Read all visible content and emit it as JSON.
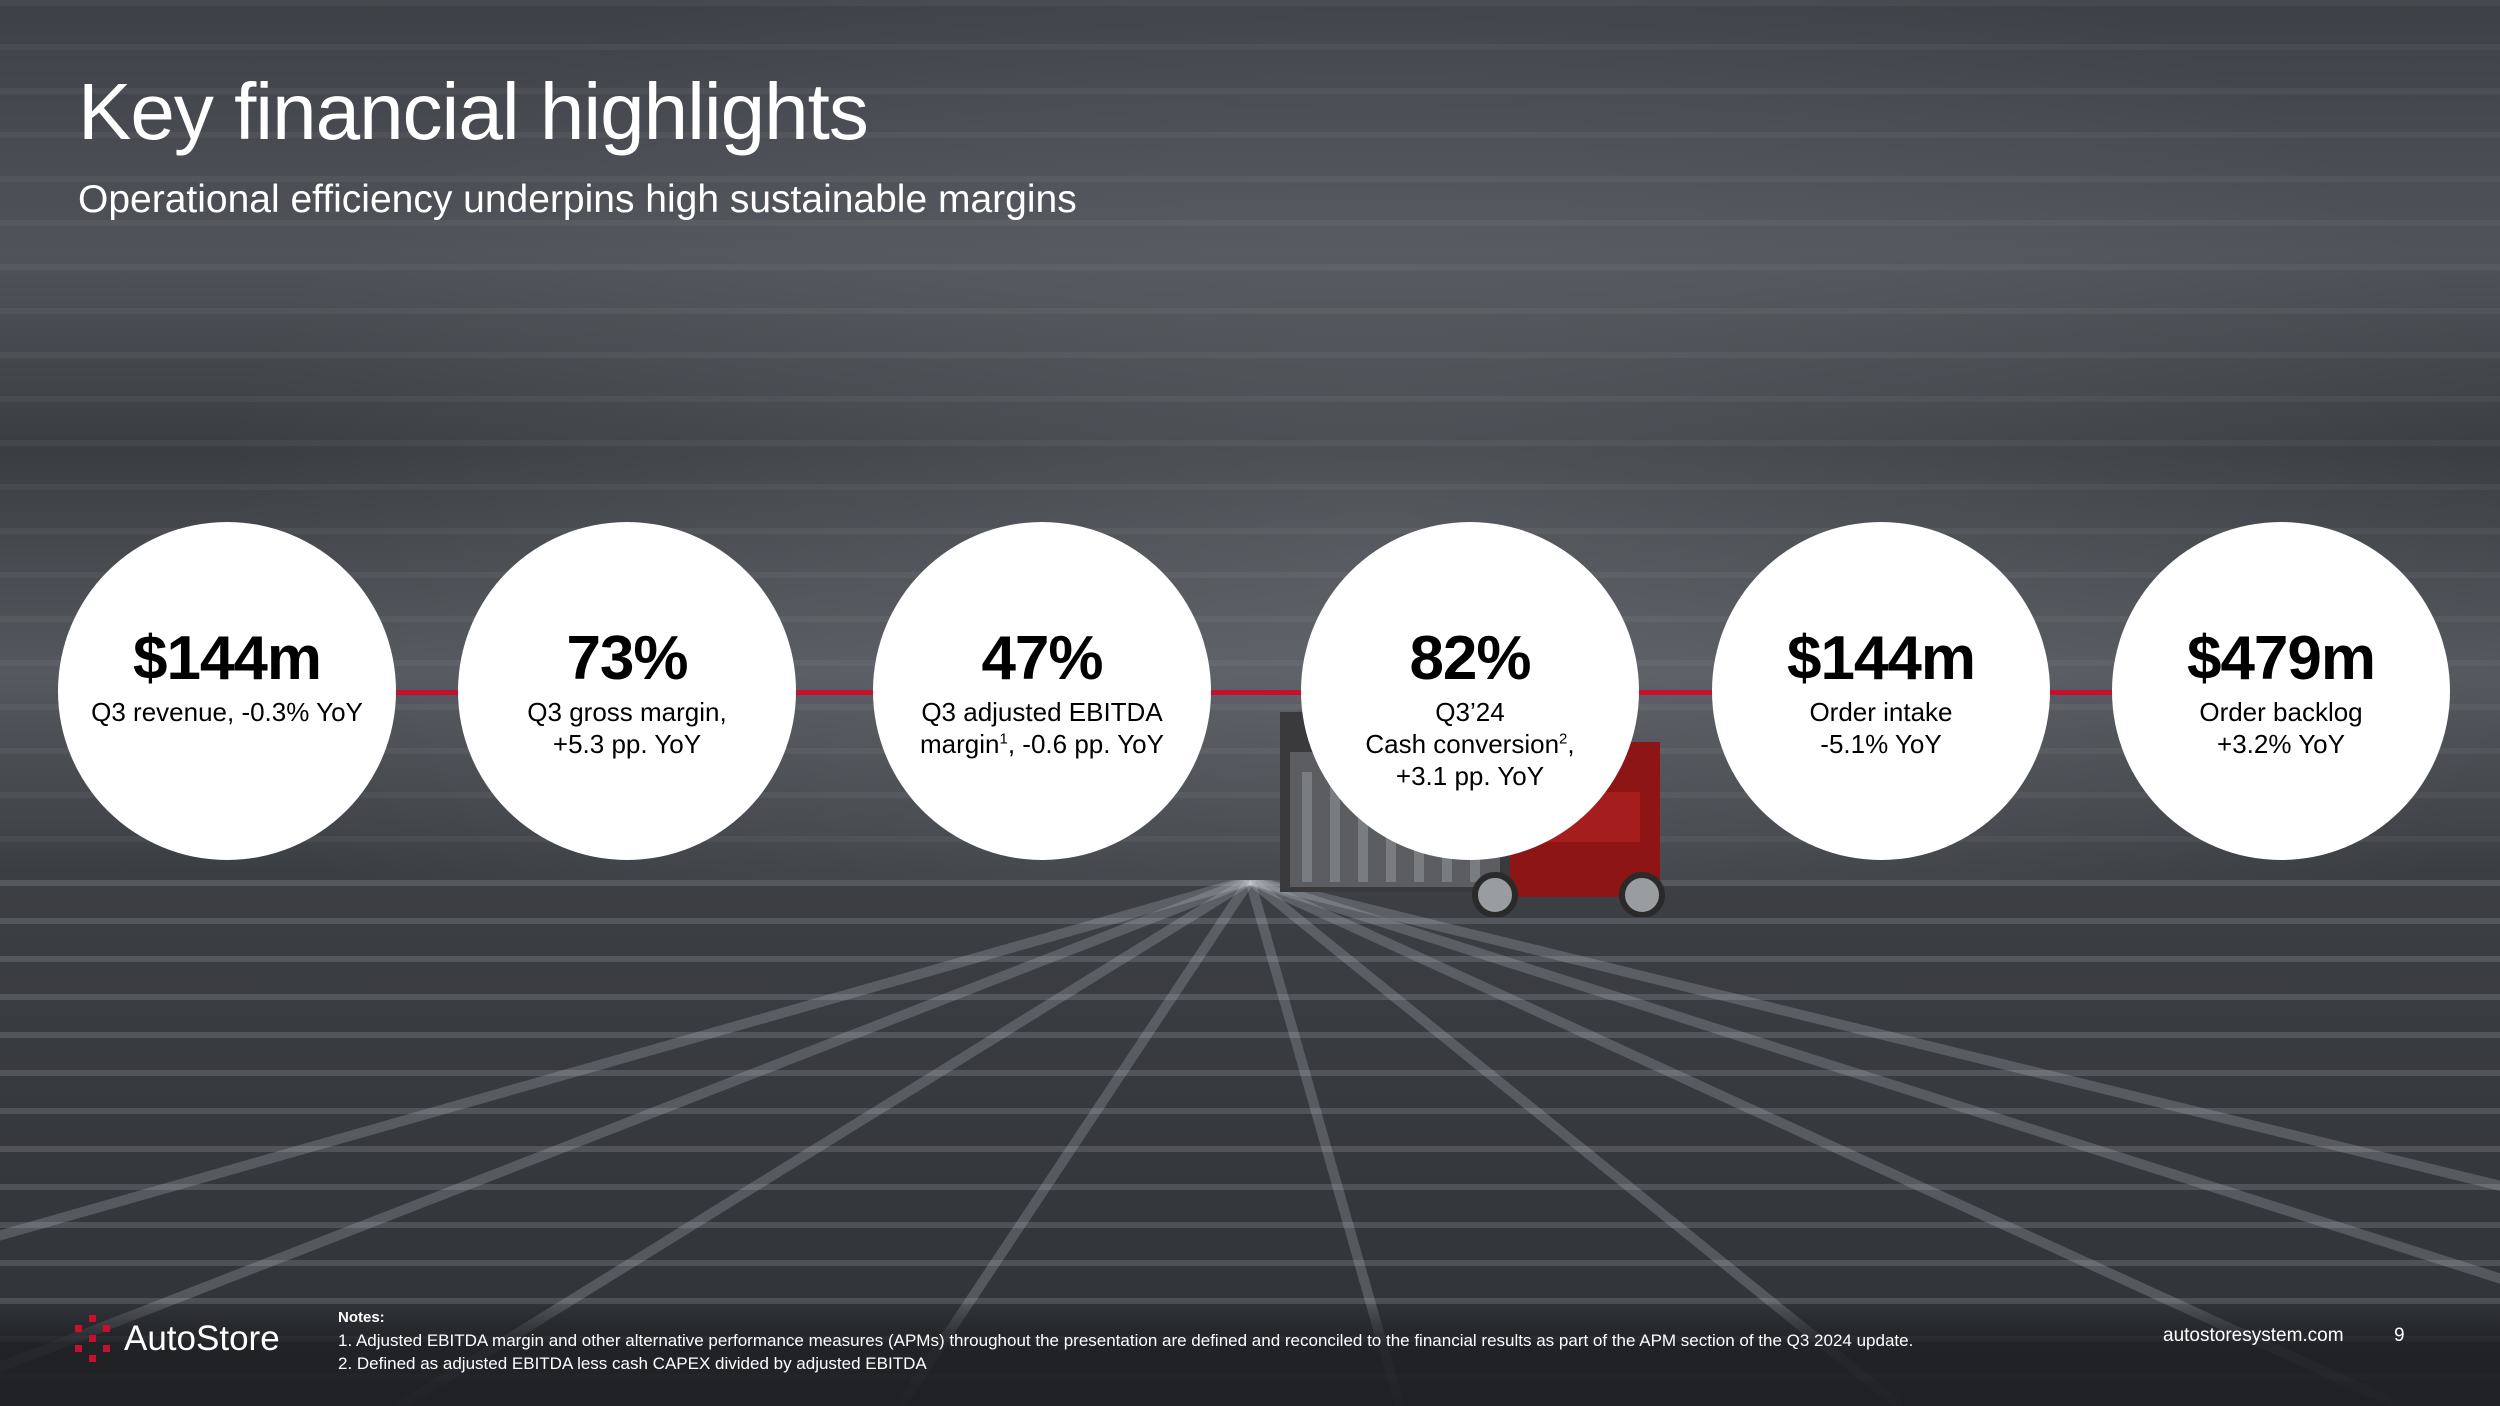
{
  "title": "Key financial highlights",
  "subtitle": "Operational efficiency underpins high sustainable margins",
  "kpis": [
    {
      "value": "$144m",
      "line1": "Q3 revenue, -0.3% YoY",
      "line2": "",
      "line3": ""
    },
    {
      "value": "73%",
      "line1": "Q3 gross margin,",
      "line2": "+5.3 pp. YoY",
      "line3": ""
    },
    {
      "value": "47%",
      "line1": "Q3 adjusted EBITDA",
      "line2_pre": "margin",
      "line2_sup": "1",
      "line2_post": ", -0.6 pp. YoY"
    },
    {
      "value": "82%",
      "line1": "Q3’24",
      "line2_pre": "Cash conversion",
      "line2_sup": "2",
      "line2_post": ",",
      "line3": "+3.1 pp. YoY"
    },
    {
      "value": "$144m",
      "line1": "Order intake",
      "line2": "-5.1% YoY",
      "line3": ""
    },
    {
      "value": "$479m",
      "line1": "Order backlog",
      "line2": "+3.2% YoY",
      "line3": ""
    }
  ],
  "footer": {
    "logo_text": "AutoStore",
    "notes_heading": "Notes:",
    "note_1": "1. Adjusted EBITDA margin and other alternative performance measures (APMs) throughout the presentation are defined and reconciled to the financial results as part of the APM section of the Q3 2024 update.",
    "note_2": "2. Defined as adjusted EBITDA less cash CAPEX divided by adjusted EBITDA",
    "website": "autostoresystem.com",
    "page_number": "9"
  },
  "colors": {
    "accent_red": "#c8102e",
    "circle_fill": "#ffffff",
    "text_light": "#ffffff"
  }
}
